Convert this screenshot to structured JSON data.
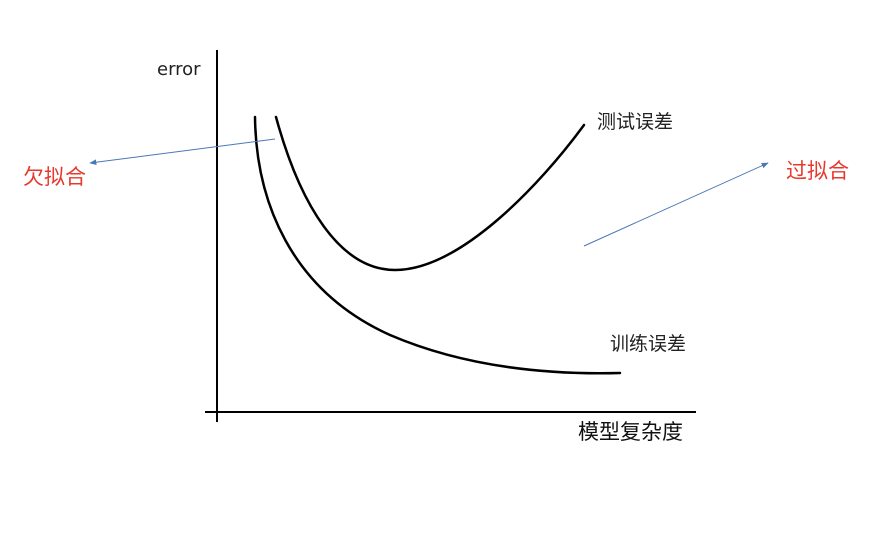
{
  "diagram": {
    "y_axis_label": "error",
    "x_axis_label": "模型复杂度",
    "curves": {
      "test_error_label": "测试误差",
      "train_error_label": "训练误差"
    },
    "annotations": {
      "underfitting": "欠拟合",
      "overfitting": "过拟合"
    },
    "colors": {
      "axis": "#000000",
      "curve": "#000000",
      "arrow": "#4a78b6",
      "annotation": "#e8382e"
    }
  }
}
